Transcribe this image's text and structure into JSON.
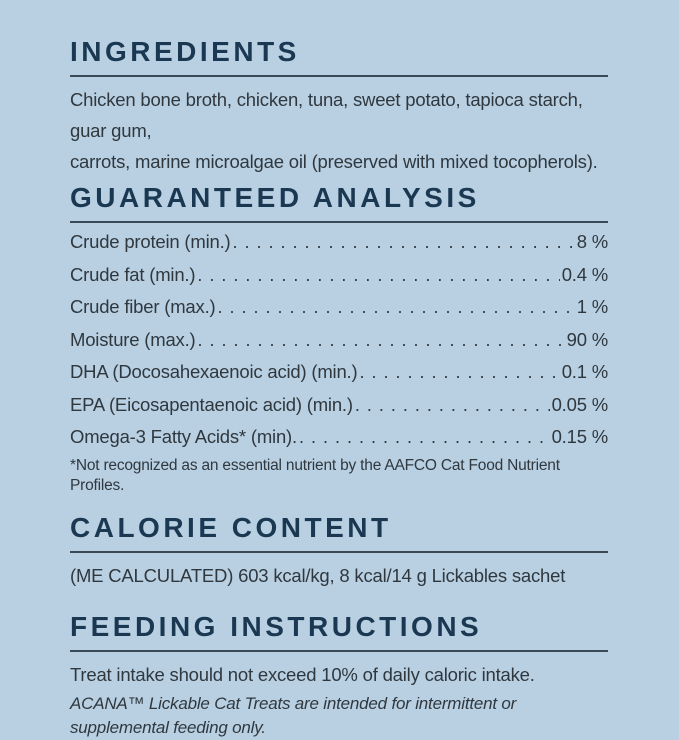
{
  "palette": {
    "background": "#b9d0e2",
    "heading": "#1b3852",
    "rule": "#3b4a57",
    "text": "#2f383f"
  },
  "sections": {
    "ingredients": {
      "title": "INGREDIENTS",
      "body": "Chicken bone broth, chicken, tuna, sweet potato, tapioca starch, guar gum,\ncarrots, marine microalgae oil (preserved with mixed tocopherols)."
    },
    "guaranteed_analysis": {
      "title": "GUARANTEED ANALYSIS",
      "rows": [
        {
          "label": "Crude protein (min.)",
          "value": "8 %"
        },
        {
          "label": "Crude fat (min.)",
          "value": "0.4 %"
        },
        {
          "label": "Crude fiber (max.)",
          "value": "1 %"
        },
        {
          "label": "Moisture (max.)",
          "value": "90 %"
        },
        {
          "label": "DHA (Docosahexaenoic acid) (min.)",
          "value": "0.1 %"
        },
        {
          "label": "EPA (Eicosapentaenoic acid) (min.)",
          "value": "0.05 %"
        },
        {
          "label": "Omega-3 Fatty Acids* (min).",
          "value": "0.15 %"
        }
      ],
      "footnote": "*Not recognized as an essential nutrient by the AAFCO Cat Food Nutrient Profiles."
    },
    "calorie_content": {
      "title": "CALORIE CONTENT",
      "body": "(ME CALCULATED) 603 kcal/kg, 8 kcal/14 g Lickables sachet"
    },
    "feeding_instructions": {
      "title": "FEEDING INSTRUCTIONS",
      "body": "Treat intake should not exceed 10% of daily caloric intake.",
      "footnote": "ACANA™ Lickable Cat Treats are intended for intermittent or supplemental feeding only."
    }
  }
}
